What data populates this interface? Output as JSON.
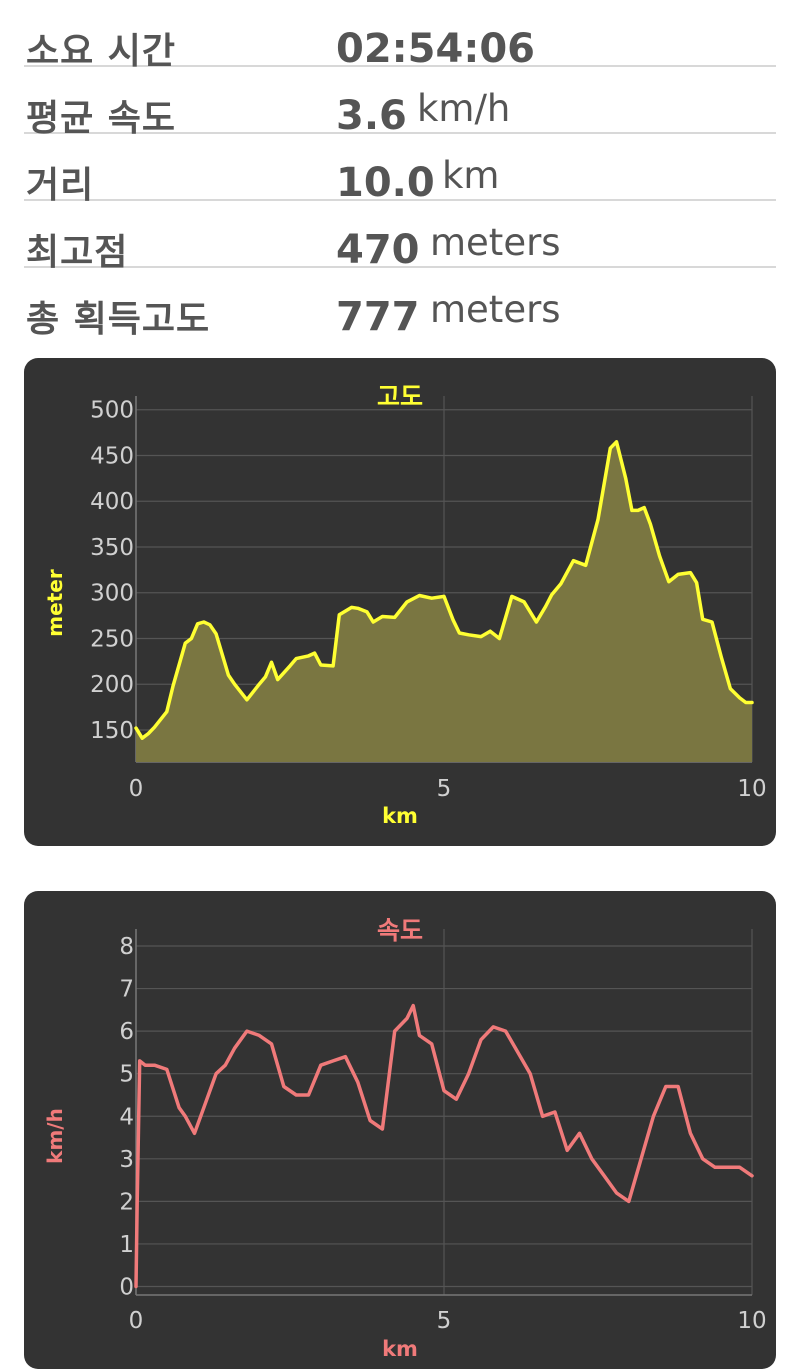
{
  "stats": [
    {
      "label": "소요 시간",
      "value": "02:54:06",
      "unit": ""
    },
    {
      "label": "평균 속도",
      "value": "3.6",
      "unit": "km/h"
    },
    {
      "label": "거리",
      "value": "10.0",
      "unit": "km"
    },
    {
      "label": "최고점",
      "value": "470",
      "unit": "meters"
    },
    {
      "label": "총 획득고도",
      "value": "777",
      "unit": "meters"
    }
  ],
  "colors": {
    "card_bg": "#333333",
    "grid": "#555555",
    "tick_text": "#d0d0d0",
    "elevation_line": "#ffff33",
    "elevation_fill": "#7a7641",
    "speed_line": "#f07a7a"
  },
  "chart_data": [
    {
      "type": "area",
      "title": "고도",
      "xlabel": "km",
      "ylabel": "meter",
      "xlim": [
        0,
        10
      ],
      "ylim": [
        115,
        515
      ],
      "x_ticks": [
        "0",
        "5",
        "10"
      ],
      "y_ticks": [
        "150",
        "200",
        "250",
        "300",
        "350",
        "400",
        "450",
        "500"
      ],
      "grid": true,
      "x": [
        0,
        0.1,
        0.2,
        0.3,
        0.5,
        0.6,
        0.8,
        0.9,
        1.0,
        1.1,
        1.2,
        1.3,
        1.5,
        1.6,
        1.8,
        2.0,
        2.1,
        2.2,
        2.3,
        2.5,
        2.6,
        2.8,
        2.9,
        3.0,
        3.2,
        3.3,
        3.5,
        3.6,
        3.75,
        3.85,
        4.0,
        4.2,
        4.4,
        4.6,
        4.8,
        5.0,
        5.15,
        5.25,
        5.4,
        5.6,
        5.75,
        5.9,
        6.1,
        6.3,
        6.5,
        6.65,
        6.75,
        6.9,
        7.1,
        7.3,
        7.5,
        7.7,
        7.8,
        7.95,
        8.05,
        8.15,
        8.25,
        8.35,
        8.5,
        8.65,
        8.8,
        9.0,
        9.1,
        9.2,
        9.35,
        9.5,
        9.65,
        9.8,
        9.9,
        10.0
      ],
      "series": [
        {
          "name": "",
          "values": [
            152,
            141,
            146,
            153,
            170,
            198,
            245,
            250,
            266,
            268,
            265,
            255,
            210,
            200,
            183,
            200,
            208,
            224,
            205,
            220,
            228,
            231,
            234,
            221,
            220,
            276,
            284,
            283,
            279,
            268,
            274,
            273,
            290,
            297,
            294,
            296,
            270,
            256,
            254,
            252,
            258,
            250,
            296,
            290,
            268,
            285,
            298,
            310,
            335,
            330,
            380,
            458,
            465,
            425,
            390,
            390,
            393,
            375,
            340,
            312,
            320,
            322,
            311,
            271,
            268,
            230,
            195,
            185,
            180,
            180
          ]
        }
      ]
    },
    {
      "type": "line",
      "title": "속도",
      "xlabel": "km",
      "ylabel": "km/h",
      "xlim": [
        0,
        10
      ],
      "ylim": [
        -0.2,
        8.4
      ],
      "x_ticks": [
        "0",
        "5",
        "10"
      ],
      "y_ticks": [
        "0",
        "1",
        "2",
        "3",
        "4",
        "5",
        "6",
        "7",
        "8"
      ],
      "grid": true,
      "x": [
        0,
        0.02,
        0.06,
        0.15,
        0.3,
        0.5,
        0.7,
        0.8,
        0.95,
        1.1,
        1.3,
        1.45,
        1.6,
        1.8,
        2.0,
        2.2,
        2.4,
        2.6,
        2.8,
        3.0,
        3.2,
        3.4,
        3.6,
        3.8,
        4.0,
        4.2,
        4.4,
        4.5,
        4.6,
        4.8,
        5.0,
        5.2,
        5.4,
        5.6,
        5.8,
        6.0,
        6.2,
        6.4,
        6.6,
        6.8,
        7.0,
        7.2,
        7.4,
        7.6,
        7.8,
        8.0,
        8.2,
        8.4,
        8.6,
        8.8,
        9.0,
        9.2,
        9.4,
        9.6,
        9.8,
        10.0
      ],
      "series": [
        {
          "name": "",
          "values": [
            0,
            2.0,
            5.3,
            5.2,
            5.2,
            5.1,
            4.2,
            4.0,
            3.6,
            4.2,
            5.0,
            5.2,
            5.6,
            6.0,
            5.9,
            5.7,
            4.7,
            4.5,
            4.5,
            5.2,
            5.3,
            5.4,
            4.8,
            3.9,
            3.7,
            6.0,
            6.3,
            6.6,
            5.9,
            5.7,
            4.6,
            4.4,
            5.0,
            5.8,
            6.1,
            6.0,
            5.5,
            5.0,
            4.0,
            4.1,
            3.2,
            3.6,
            3.0,
            2.6,
            2.2,
            2.0,
            3.0,
            4.0,
            4.7,
            4.7,
            3.6,
            3.0,
            2.8,
            2.8,
            2.8,
            2.6
          ]
        }
      ]
    }
  ]
}
